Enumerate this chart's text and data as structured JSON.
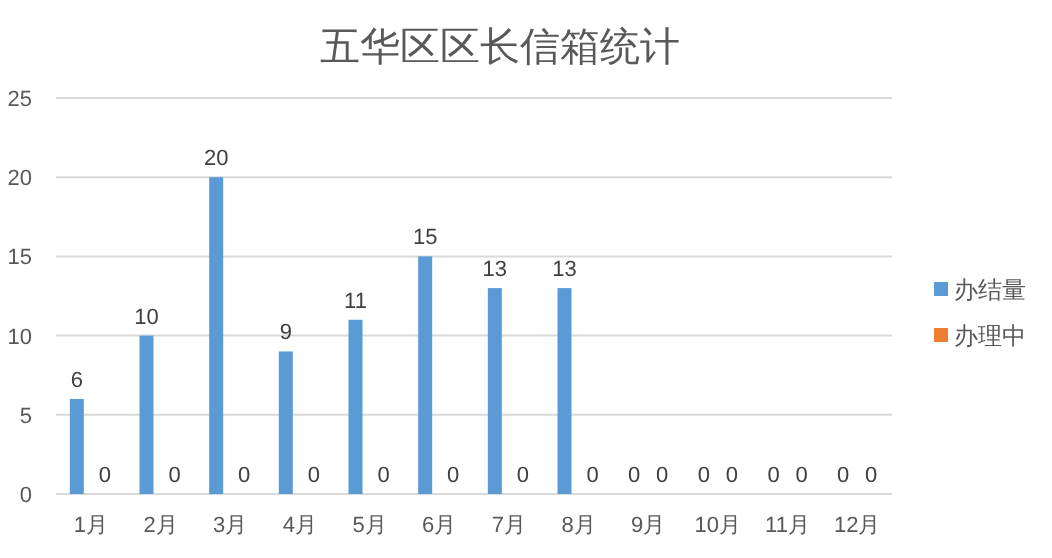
{
  "chart_data": {
    "type": "bar",
    "title": "五华区区长信箱统计",
    "categories": [
      "1月",
      "2月",
      "3月",
      "4月",
      "5月",
      "6月",
      "7月",
      "8月",
      "9月",
      "10月",
      "11月",
      "12月"
    ],
    "series": [
      {
        "name": "办结量",
        "color": "#5b9bd5",
        "values": [
          6,
          10,
          20,
          9,
          11,
          15,
          13,
          13,
          0,
          0,
          0,
          0
        ]
      },
      {
        "name": "办理中",
        "color": "#ed7d31",
        "values": [
          0,
          0,
          0,
          0,
          0,
          0,
          0,
          0,
          0,
          0,
          0,
          0
        ]
      }
    ],
    "ylim": [
      0,
      25
    ],
    "yticks": [
      0,
      5,
      10,
      15,
      20,
      25
    ],
    "grid": "y",
    "legend": "right",
    "data_labels": true
  }
}
